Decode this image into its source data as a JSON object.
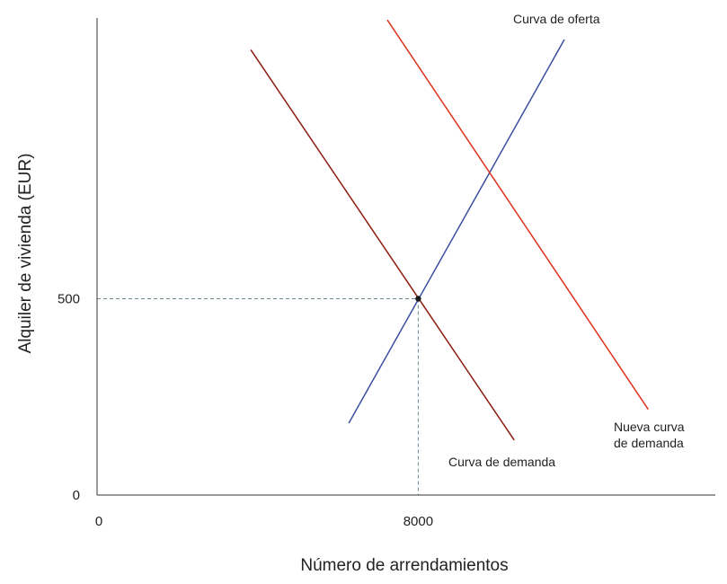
{
  "chart_data": {
    "type": "line",
    "xlabel": "Número de arrendamientos",
    "ylabel": "Alquiler de vivienda (EUR)",
    "xlim": [
      0,
      15400
    ],
    "ylim": [
      0,
      1215
    ],
    "x_ticks": [
      {
        "value": 0,
        "label": "0"
      },
      {
        "value": 8000,
        "label": "8000"
      }
    ],
    "y_ticks": [
      {
        "value": 0,
        "label": "0"
      },
      {
        "value": 500,
        "label": "500"
      }
    ],
    "grid": false,
    "equilibrium": {
      "x": 8000,
      "y": 500
    },
    "series": [
      {
        "key": "demand",
        "name": "Curva de demanda",
        "label_lines": [
          "Curva de demanda"
        ],
        "color": "#8c1a0d",
        "points": [
          [
            3830,
            1134
          ],
          [
            10390,
            140
          ]
        ]
      },
      {
        "key": "supply",
        "name": "Curva de oferta",
        "label_lines": [
          "Curva de oferta"
        ],
        "color": "#3b4fa0",
        "points": [
          [
            6270,
            183
          ],
          [
            11640,
            1160
          ]
        ]
      },
      {
        "key": "new_demand",
        "name": "Nueva curva de demanda",
        "label_lines": [
          "Nueva curva",
          "de demanda"
        ],
        "color": "#e0321c",
        "points": [
          [
            7230,
            1210
          ],
          [
            13730,
            218
          ]
        ]
      }
    ]
  }
}
